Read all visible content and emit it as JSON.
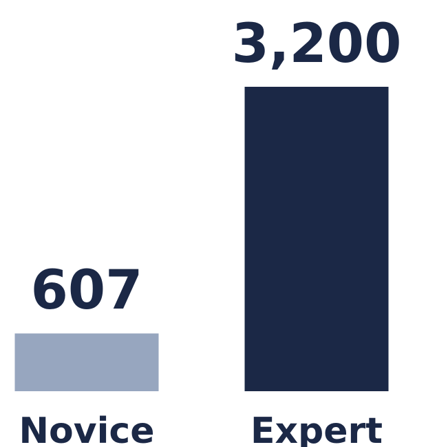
{
  "chart_data": {
    "type": "bar",
    "categories": [
      "Novice",
      "Expert"
    ],
    "values": [
      607,
      3200
    ],
    "value_labels": [
      "607",
      "3,200"
    ],
    "title": "",
    "xlabel": "",
    "ylabel": "",
    "ylim": [
      0,
      3200
    ],
    "grid": false,
    "legend": "none",
    "colors": {
      "bars": [
        "#97a6bf",
        "#1b2846"
      ],
      "text": "#1b2846"
    }
  }
}
